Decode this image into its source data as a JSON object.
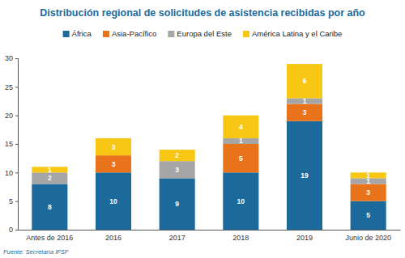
{
  "chart_data": {
    "type": "bar",
    "title": "Distribución regional de solicitudes de asistencia recibidas por año",
    "source": "Fuente: Secretaría IFSF",
    "categories": [
      "Antes de 2016",
      "2016",
      "2017",
      "2018",
      "2019",
      "Junio de 2020"
    ],
    "series": [
      {
        "name": "África",
        "color": "#1b6a9b",
        "values": [
          8,
          10,
          9,
          10,
          19,
          5
        ]
      },
      {
        "name": "Asia-Pacífico",
        "color": "#e8731a",
        "values": [
          null,
          3,
          null,
          5,
          3,
          3
        ]
      },
      {
        "name": "Europa del Este",
        "color": "#a6a6a6",
        "values": [
          2,
          null,
          3,
          1,
          1,
          1
        ]
      },
      {
        "name": "América Latina y el Caribe",
        "color": "#f8c713",
        "values": [
          1,
          3,
          2,
          4,
          6,
          1
        ]
      }
    ],
    "ylim": [
      0,
      30
    ],
    "yticks": [
      0,
      5,
      10,
      15,
      20,
      25,
      30
    ],
    "stacked": true,
    "data_labels": true,
    "grid": false,
    "legend": "top"
  }
}
